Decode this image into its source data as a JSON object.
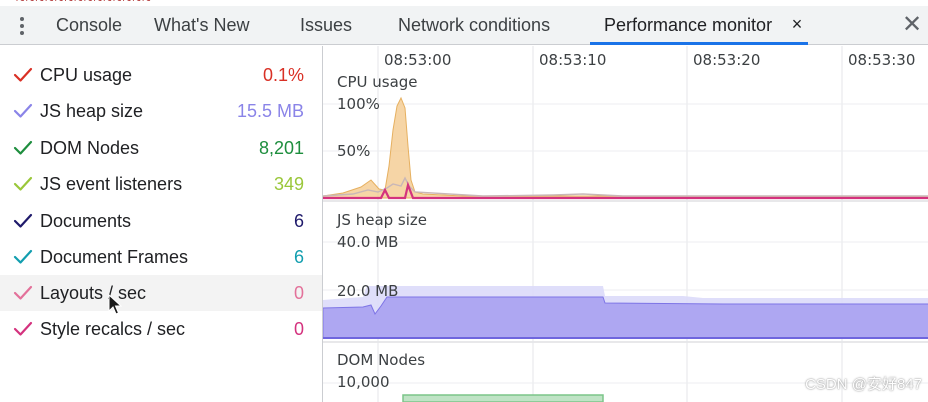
{
  "tabs": [
    {
      "label": "Console",
      "active": false
    },
    {
      "label": "What's New",
      "active": false
    },
    {
      "label": "Issues",
      "active": false
    },
    {
      "label": "Network conditions",
      "active": false
    },
    {
      "label": "Performance monitor",
      "active": true
    }
  ],
  "tab_close_glyph": "×",
  "panel_close_glyph": "✕",
  "metrics": [
    {
      "label": "CPU usage",
      "value": "0.1%",
      "color": "#d93025",
      "checked": true
    },
    {
      "label": "JS heap size",
      "value": "15.5 MB",
      "color": "#8a84e8",
      "checked": true
    },
    {
      "label": "DOM Nodes",
      "value": "8,201",
      "color": "#1e8e3e",
      "checked": true
    },
    {
      "label": "JS event listeners",
      "value": "349",
      "color": "#9ac73a",
      "checked": true
    },
    {
      "label": "Documents",
      "value": "6",
      "color": "#1f1a6b",
      "checked": true
    },
    {
      "label": "Document Frames",
      "value": "6",
      "color": "#129eaf",
      "checked": true
    },
    {
      "label": "Layouts / sec",
      "value": "0",
      "color": "#e3719a",
      "checked": true
    },
    {
      "label": "Style recalcs / sec",
      "value": "0",
      "color": "#d4327e",
      "checked": true
    }
  ],
  "timeline": {
    "labels": [
      "08:53:00",
      "08:53:10",
      "08:53:20",
      "08:53:30"
    ]
  },
  "charts": {
    "cpu": {
      "title": "CPU usage",
      "scale_top": "100%",
      "scale_mid": "50%"
    },
    "heap": {
      "title": "JS heap size",
      "scale_top": "40.0 MB",
      "scale_mid": "20.0 MB"
    },
    "dom": {
      "title": "DOM Nodes",
      "scale_top": "10,000"
    }
  },
  "watermark": "CSDN @安好847",
  "icons": {
    "menu": "vertical-ellipsis-icon",
    "check": "checkmark-icon",
    "cursor": "mouse-pointer-icon"
  }
}
